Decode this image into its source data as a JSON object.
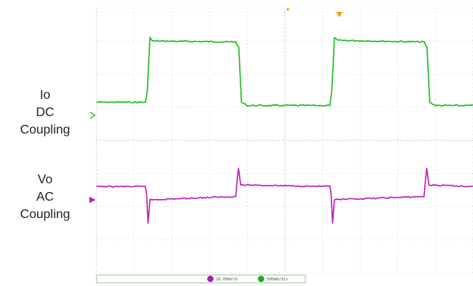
{
  "chart_data": {
    "type": "line",
    "title": "",
    "xlabel": "",
    "ylabel": "",
    "grid": true,
    "x_divisions": [
      0,
      10
    ],
    "y_divisions": [
      -4,
      4
    ],
    "series": [
      {
        "name": "",
        "label_lines": [
          "Io",
          "DC",
          "Coupling"
        ],
        "color": "#22bb22",
        "points": [
          [
            0.0,
            1.15
          ],
          [
            1.3,
            1.15
          ],
          [
            1.35,
            1.5
          ],
          [
            1.42,
            3.1
          ],
          [
            1.5,
            3.0
          ],
          [
            3.7,
            2.97
          ],
          [
            3.78,
            2.8
          ],
          [
            3.85,
            1.15
          ],
          [
            4.0,
            1.05
          ],
          [
            6.2,
            1.05
          ],
          [
            6.25,
            1.5
          ],
          [
            6.32,
            3.1
          ],
          [
            6.4,
            3.02
          ],
          [
            8.7,
            2.97
          ],
          [
            8.78,
            2.8
          ],
          [
            8.85,
            1.15
          ],
          [
            9.0,
            1.05
          ],
          [
            10.0,
            1.05
          ]
        ]
      },
      {
        "name": "",
        "label_lines": [
          "Vo",
          "AC",
          "Coupling"
        ],
        "color": "#bb22bb",
        "points": [
          [
            0.0,
            -1.4
          ],
          [
            1.3,
            -1.4
          ],
          [
            1.33,
            -1.6
          ],
          [
            1.37,
            -2.5
          ],
          [
            1.42,
            -1.8
          ],
          [
            3.7,
            -1.7
          ],
          [
            3.73,
            -1.3
          ],
          [
            3.77,
            -0.85
          ],
          [
            3.83,
            -1.35
          ],
          [
            6.2,
            -1.4
          ],
          [
            6.23,
            -1.6
          ],
          [
            6.27,
            -2.5
          ],
          [
            6.32,
            -1.8
          ],
          [
            8.7,
            -1.7
          ],
          [
            8.73,
            -1.3
          ],
          [
            8.77,
            -0.85
          ],
          [
            8.83,
            -1.35
          ],
          [
            10.0,
            -1.4
          ]
        ]
      }
    ],
    "markers": {
      "trigger_color": "#ff9900"
    },
    "readouts": [
      {
        "channel": "ch-purple",
        "color": "#aa22aa",
        "text": "20.00mV/d"
      },
      {
        "channel": "ch-green",
        "color": "#22aa22",
        "text": "500mA/div"
      }
    ]
  }
}
